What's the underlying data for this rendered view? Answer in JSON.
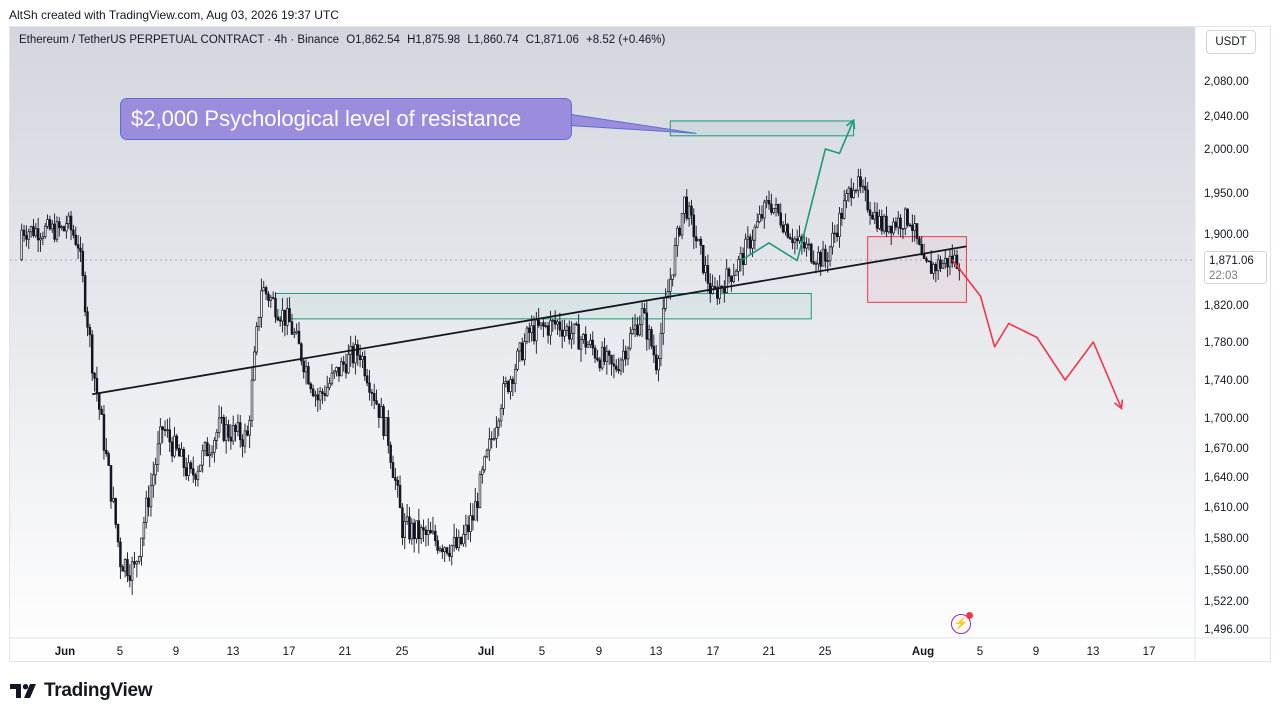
{
  "caption": "AltSh created with TradingView.com, Aug 03, 2026 19:37 UTC",
  "header": {
    "symbol": "Ethereum / TetherUS PERPETUAL CONTRACT · 4h · Binance",
    "open": "O1,862.54",
    "high": "H1,875.98",
    "low": "L1,860.74",
    "close": "C1,871.06",
    "change": "+8.52 (+0.46%)"
  },
  "currency": "USDT",
  "annotation": "$2,000 Psychological level of resistance",
  "last_price": "1,871.06",
  "countdown": "22:03",
  "brand": "TradingView",
  "icons": {
    "flash": "lightning-icon",
    "logo": "tradingview-logo-icon"
  },
  "colors": {
    "candle": "#131722",
    "green_box": "#1a9c72",
    "red_box": "#f23645",
    "trendline": "#131722",
    "callout_bg": "#9b8cde",
    "projection_up": "#1a9c72",
    "projection_down": "#f23645"
  },
  "chart_data": {
    "type": "candlestick",
    "timeframe": "4h",
    "x_tick_labels": [
      "Jun",
      "5",
      "9",
      "13",
      "17",
      "21",
      "25",
      "Jul",
      "5",
      "9",
      "13",
      "17",
      "21",
      "25",
      "Aug",
      "5",
      "9",
      "13",
      "17"
    ],
    "y_tick_labels": [
      "2,080.00",
      "2,040.00",
      "2,000.00",
      "1,950.00",
      "1,900.00",
      "1,820.00",
      "1,780.00",
      "1,740.00",
      "1,700.00",
      "1,670.00",
      "1,640.00",
      "1,610.00",
      "1,580.00",
      "1,550.00",
      "1,522.00",
      "1,496.00"
    ],
    "price_path": [
      {
        "x": "Jun 1",
        "y": 1905
      },
      {
        "x": "Jun 1",
        "y": 1920
      },
      {
        "x": "Jun 2",
        "y": 1890
      },
      {
        "x": "Jun 3",
        "y": 1760
      },
      {
        "x": "Jun 4",
        "y": 1660
      },
      {
        "x": "Jun 5",
        "y": 1560
      },
      {
        "x": "Jun 6",
        "y": 1550
      },
      {
        "x": "Jun 7",
        "y": 1620
      },
      {
        "x": "Jun 8",
        "y": 1690
      },
      {
        "x": "Jun 10",
        "y": 1640
      },
      {
        "x": "Jun 12",
        "y": 1690
      },
      {
        "x": "Jun 14",
        "y": 1680
      },
      {
        "x": "Jun 15",
        "y": 1840
      },
      {
        "x": "Jun 17",
        "y": 1800
      },
      {
        "x": "Jun 19",
        "y": 1720
      },
      {
        "x": "Jun 21",
        "y": 1760
      },
      {
        "x": "Jun 22",
        "y": 1770
      },
      {
        "x": "Jun 24",
        "y": 1680
      },
      {
        "x": "Jun 25",
        "y": 1590
      },
      {
        "x": "Jun 27",
        "y": 1580
      },
      {
        "x": "Jun 29",
        "y": 1570
      },
      {
        "x": "Jun 30",
        "y": 1600
      },
      {
        "x": "Jul 2",
        "y": 1720
      },
      {
        "x": "Jul 4",
        "y": 1790
      },
      {
        "x": "Jul 6",
        "y": 1800
      },
      {
        "x": "Jul 8",
        "y": 1780
      },
      {
        "x": "Jul 10",
        "y": 1750
      },
      {
        "x": "Jul 12",
        "y": 1810
      },
      {
        "x": "Jul 13",
        "y": 1760
      },
      {
        "x": "Jul 15",
        "y": 1940
      },
      {
        "x": "Jul 17",
        "y": 1830
      },
      {
        "x": "Jul 19",
        "y": 1870
      },
      {
        "x": "Jul 21",
        "y": 1940
      },
      {
        "x": "Jul 23",
        "y": 1890
      },
      {
        "x": "Jul 25",
        "y": 1870
      },
      {
        "x": "Jul 27",
        "y": 1965
      },
      {
        "x": "Jul 29",
        "y": 1910
      },
      {
        "x": "Jul 31",
        "y": 1920
      },
      {
        "x": "Aug 1",
        "y": 1860
      },
      {
        "x": "Aug 3",
        "y": 1871
      }
    ],
    "resistance_zone": {
      "x_start": "Jul 14",
      "x_end": "Jul 27",
      "y_low": 2016,
      "y_high": 2034
    },
    "support_zone": {
      "x_start": "Jun 16",
      "x_end": "Jul 24",
      "y_low": 1805,
      "y_high": 1833
    },
    "breakdown_box": {
      "x_start": "Jul 28",
      "x_end": "Aug 4",
      "y_low": 1823,
      "y_high": 1897
    },
    "trendline": [
      {
        "x": "Jun 3",
        "y": 1725
      },
      {
        "x": "Aug 4",
        "y": 1886
      }
    ],
    "projection_up": [
      {
        "x": "Jul 19",
        "y": 1870
      },
      {
        "x": "Jul 21",
        "y": 1890
      },
      {
        "x": "Jul 23",
        "y": 1870
      },
      {
        "x": "Jul 25",
        "y": 2000
      },
      {
        "x": "Jul 26",
        "y": 1995
      },
      {
        "x": "Jul 27",
        "y": 2035
      }
    ],
    "projection_down": [
      {
        "x": "Aug 3",
        "y": 1871
      },
      {
        "x": "Aug 5",
        "y": 1830
      },
      {
        "x": "Aug 6",
        "y": 1775
      },
      {
        "x": "Aug 7",
        "y": 1800
      },
      {
        "x": "Aug 9",
        "y": 1785
      },
      {
        "x": "Aug 11",
        "y": 1740
      },
      {
        "x": "Aug 13",
        "y": 1780
      },
      {
        "x": "Aug 15",
        "y": 1710
      }
    ],
    "grid": false
  }
}
